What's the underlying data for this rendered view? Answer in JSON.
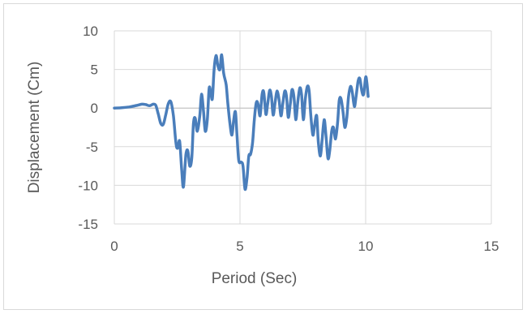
{
  "chart_data": {
    "type": "line",
    "xlabel": "Period (Sec)",
    "ylabel": "Displacement (Cm)",
    "xlim": [
      0,
      15
    ],
    "ylim": [
      -15,
      10
    ],
    "x_ticks": [
      0,
      5,
      10,
      15
    ],
    "y_ticks": [
      10,
      5,
      0,
      -5,
      -10,
      -15
    ],
    "grid": true,
    "legend": "none",
    "series": [
      {
        "color": "#4a7ebb",
        "points": [
          [
            0,
            0
          ],
          [
            0.3,
            0.05
          ],
          [
            0.6,
            0.15
          ],
          [
            0.9,
            0.35
          ],
          [
            1.1,
            0.5
          ],
          [
            1.25,
            0.45
          ],
          [
            1.4,
            0.3
          ],
          [
            1.55,
            0.5
          ],
          [
            1.65,
            0.35
          ],
          [
            1.75,
            -0.8
          ],
          [
            1.85,
            -2.0
          ],
          [
            1.95,
            -2.1
          ],
          [
            2.05,
            -0.8
          ],
          [
            2.15,
            0.6
          ],
          [
            2.25,
            0.8
          ],
          [
            2.35,
            -1.0
          ],
          [
            2.45,
            -4.5
          ],
          [
            2.52,
            -5.2
          ],
          [
            2.6,
            -4.3
          ],
          [
            2.68,
            -8.0
          ],
          [
            2.75,
            -10.2
          ],
          [
            2.85,
            -6.0
          ],
          [
            2.93,
            -5.6
          ],
          [
            3.0,
            -7.5
          ],
          [
            3.08,
            -6.5
          ],
          [
            3.15,
            -2.0
          ],
          [
            3.22,
            -1.3
          ],
          [
            3.3,
            -3.0
          ],
          [
            3.4,
            -1.0
          ],
          [
            3.47,
            1.8
          ],
          [
            3.55,
            -0.5
          ],
          [
            3.62,
            -3.0
          ],
          [
            3.7,
            -1.5
          ],
          [
            3.77,
            2.5
          ],
          [
            3.83,
            2.2
          ],
          [
            3.9,
            1.2
          ],
          [
            3.97,
            5.0
          ],
          [
            4.05,
            6.8
          ],
          [
            4.12,
            5.5
          ],
          [
            4.2,
            5.0
          ],
          [
            4.27,
            6.9
          ],
          [
            4.35,
            4.5
          ],
          [
            4.45,
            3.0
          ],
          [
            4.52,
            0.5
          ],
          [
            4.6,
            -2.0
          ],
          [
            4.68,
            -3.5
          ],
          [
            4.75,
            -1.5
          ],
          [
            4.82,
            -0.5
          ],
          [
            4.88,
            -3.5
          ],
          [
            4.95,
            -6.8
          ],
          [
            5.05,
            -7.0
          ],
          [
            5.12,
            -7.5
          ],
          [
            5.2,
            -10.5
          ],
          [
            5.28,
            -9.0
          ],
          [
            5.35,
            -6.2
          ],
          [
            5.42,
            -6.0
          ],
          [
            5.5,
            -4.5
          ],
          [
            5.57,
            -1.5
          ],
          [
            5.65,
            0.7
          ],
          [
            5.72,
            0.5
          ],
          [
            5.8,
            -1.0
          ],
          [
            5.88,
            1.8
          ],
          [
            5.95,
            2.0
          ],
          [
            6.03,
            -0.8
          ],
          [
            6.1,
            0.5
          ],
          [
            6.18,
            2.3
          ],
          [
            6.25,
            1.5
          ],
          [
            6.32,
            -0.9
          ],
          [
            6.4,
            0.8
          ],
          [
            6.47,
            2.2
          ],
          [
            6.55,
            1.2
          ],
          [
            6.63,
            -1.0
          ],
          [
            6.7,
            0.5
          ],
          [
            6.78,
            2.2
          ],
          [
            6.85,
            1.5
          ],
          [
            6.92,
            -1.2
          ],
          [
            7.0,
            0.5
          ],
          [
            7.07,
            2.4
          ],
          [
            7.15,
            1.4
          ],
          [
            7.22,
            -1.5
          ],
          [
            7.3,
            0.8
          ],
          [
            7.38,
            2.6
          ],
          [
            7.45,
            1.7
          ],
          [
            7.52,
            -1.5
          ],
          [
            7.6,
            1.2
          ],
          [
            7.68,
            2.8
          ],
          [
            7.75,
            2.2
          ],
          [
            7.82,
            -1.0
          ],
          [
            7.9,
            -3.5
          ],
          [
            7.97,
            -2.2
          ],
          [
            8.05,
            -1.0
          ],
          [
            8.12,
            -4.5
          ],
          [
            8.2,
            -6.2
          ],
          [
            8.27,
            -4.0
          ],
          [
            8.35,
            -1.5
          ],
          [
            8.42,
            -3.5
          ],
          [
            8.5,
            -6.5
          ],
          [
            8.57,
            -5.5
          ],
          [
            8.65,
            -3.0
          ],
          [
            8.72,
            -2.5
          ],
          [
            8.8,
            -4.0
          ],
          [
            8.88,
            -2.0
          ],
          [
            8.95,
            1.0
          ],
          [
            9.02,
            1.2
          ],
          [
            9.1,
            -0.5
          ],
          [
            9.17,
            -2.5
          ],
          [
            9.25,
            -1.2
          ],
          [
            9.32,
            1.5
          ],
          [
            9.4,
            2.8
          ],
          [
            9.47,
            2.0
          ],
          [
            9.55,
            0.2
          ],
          [
            9.62,
            1.5
          ],
          [
            9.7,
            3.5
          ],
          [
            9.77,
            3.8
          ],
          [
            9.85,
            2.2
          ],
          [
            9.92,
            1.8
          ],
          [
            10.0,
            4.0
          ],
          [
            10.05,
            3.2
          ],
          [
            10.1,
            1.5
          ]
        ]
      }
    ]
  }
}
